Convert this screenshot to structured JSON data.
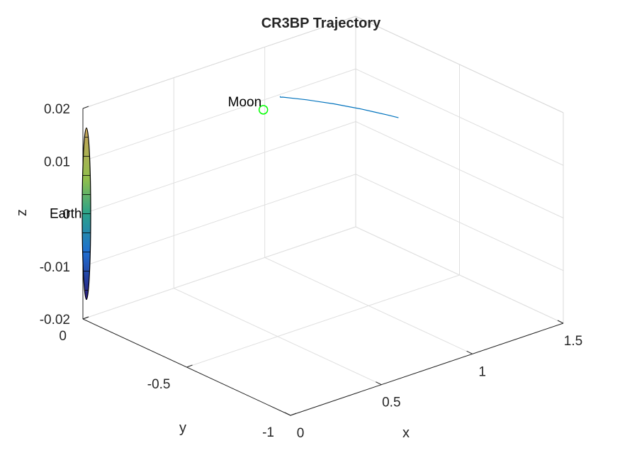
{
  "chart_data": {
    "type": "line",
    "projection": "3d",
    "title": "CR3BP Trajectory",
    "xlabel": "x",
    "ylabel": "y",
    "zlabel": "z",
    "xlim": [
      0,
      1.5
    ],
    "ylim": [
      -1,
      0
    ],
    "zlim": [
      -0.02,
      0.02
    ],
    "x_ticks": [
      0,
      0.5,
      1,
      1.5
    ],
    "x_tick_labels": [
      "0",
      "0.5",
      "1",
      "1.5"
    ],
    "y_ticks": [
      -1,
      -0.5,
      0
    ],
    "y_tick_labels": [
      "-1",
      "-0.5",
      "0"
    ],
    "z_ticks": [
      -0.02,
      -0.01,
      0,
      0.01,
      0.02
    ],
    "z_tick_labels": [
      "-0.02",
      "-0.01",
      "0",
      "0.01",
      "0.02"
    ],
    "grid": true,
    "series": [
      {
        "color": "#0072BD",
        "x": [
          1.061,
          1.063,
          1.07,
          1.1,
          1.14,
          1.18,
          1.22,
          1.26,
          1.3,
          1.34,
          1.38,
          1.41
        ],
        "y": [
          -0.02,
          -0.021,
          -0.024,
          -0.05,
          -0.08,
          -0.11,
          -0.14,
          -0.17,
          -0.2,
          -0.23,
          -0.26,
          -0.285
        ],
        "z": [
          0.0103,
          0.0101,
          0.0101,
          0.01,
          0.0098,
          0.0095,
          0.0092,
          0.0088,
          0.0084,
          0.0079,
          0.0074,
          0.007
        ]
      }
    ],
    "bodies": [
      {
        "name": "Earth",
        "marker": "sphere",
        "center": [
          0.0,
          0.0,
          0.0
        ],
        "colormap": "parula"
      },
      {
        "name": "Moon",
        "marker": "circle",
        "color": "#00FF00",
        "center": [
          1.0,
          0.0,
          0.0
        ]
      }
    ]
  }
}
